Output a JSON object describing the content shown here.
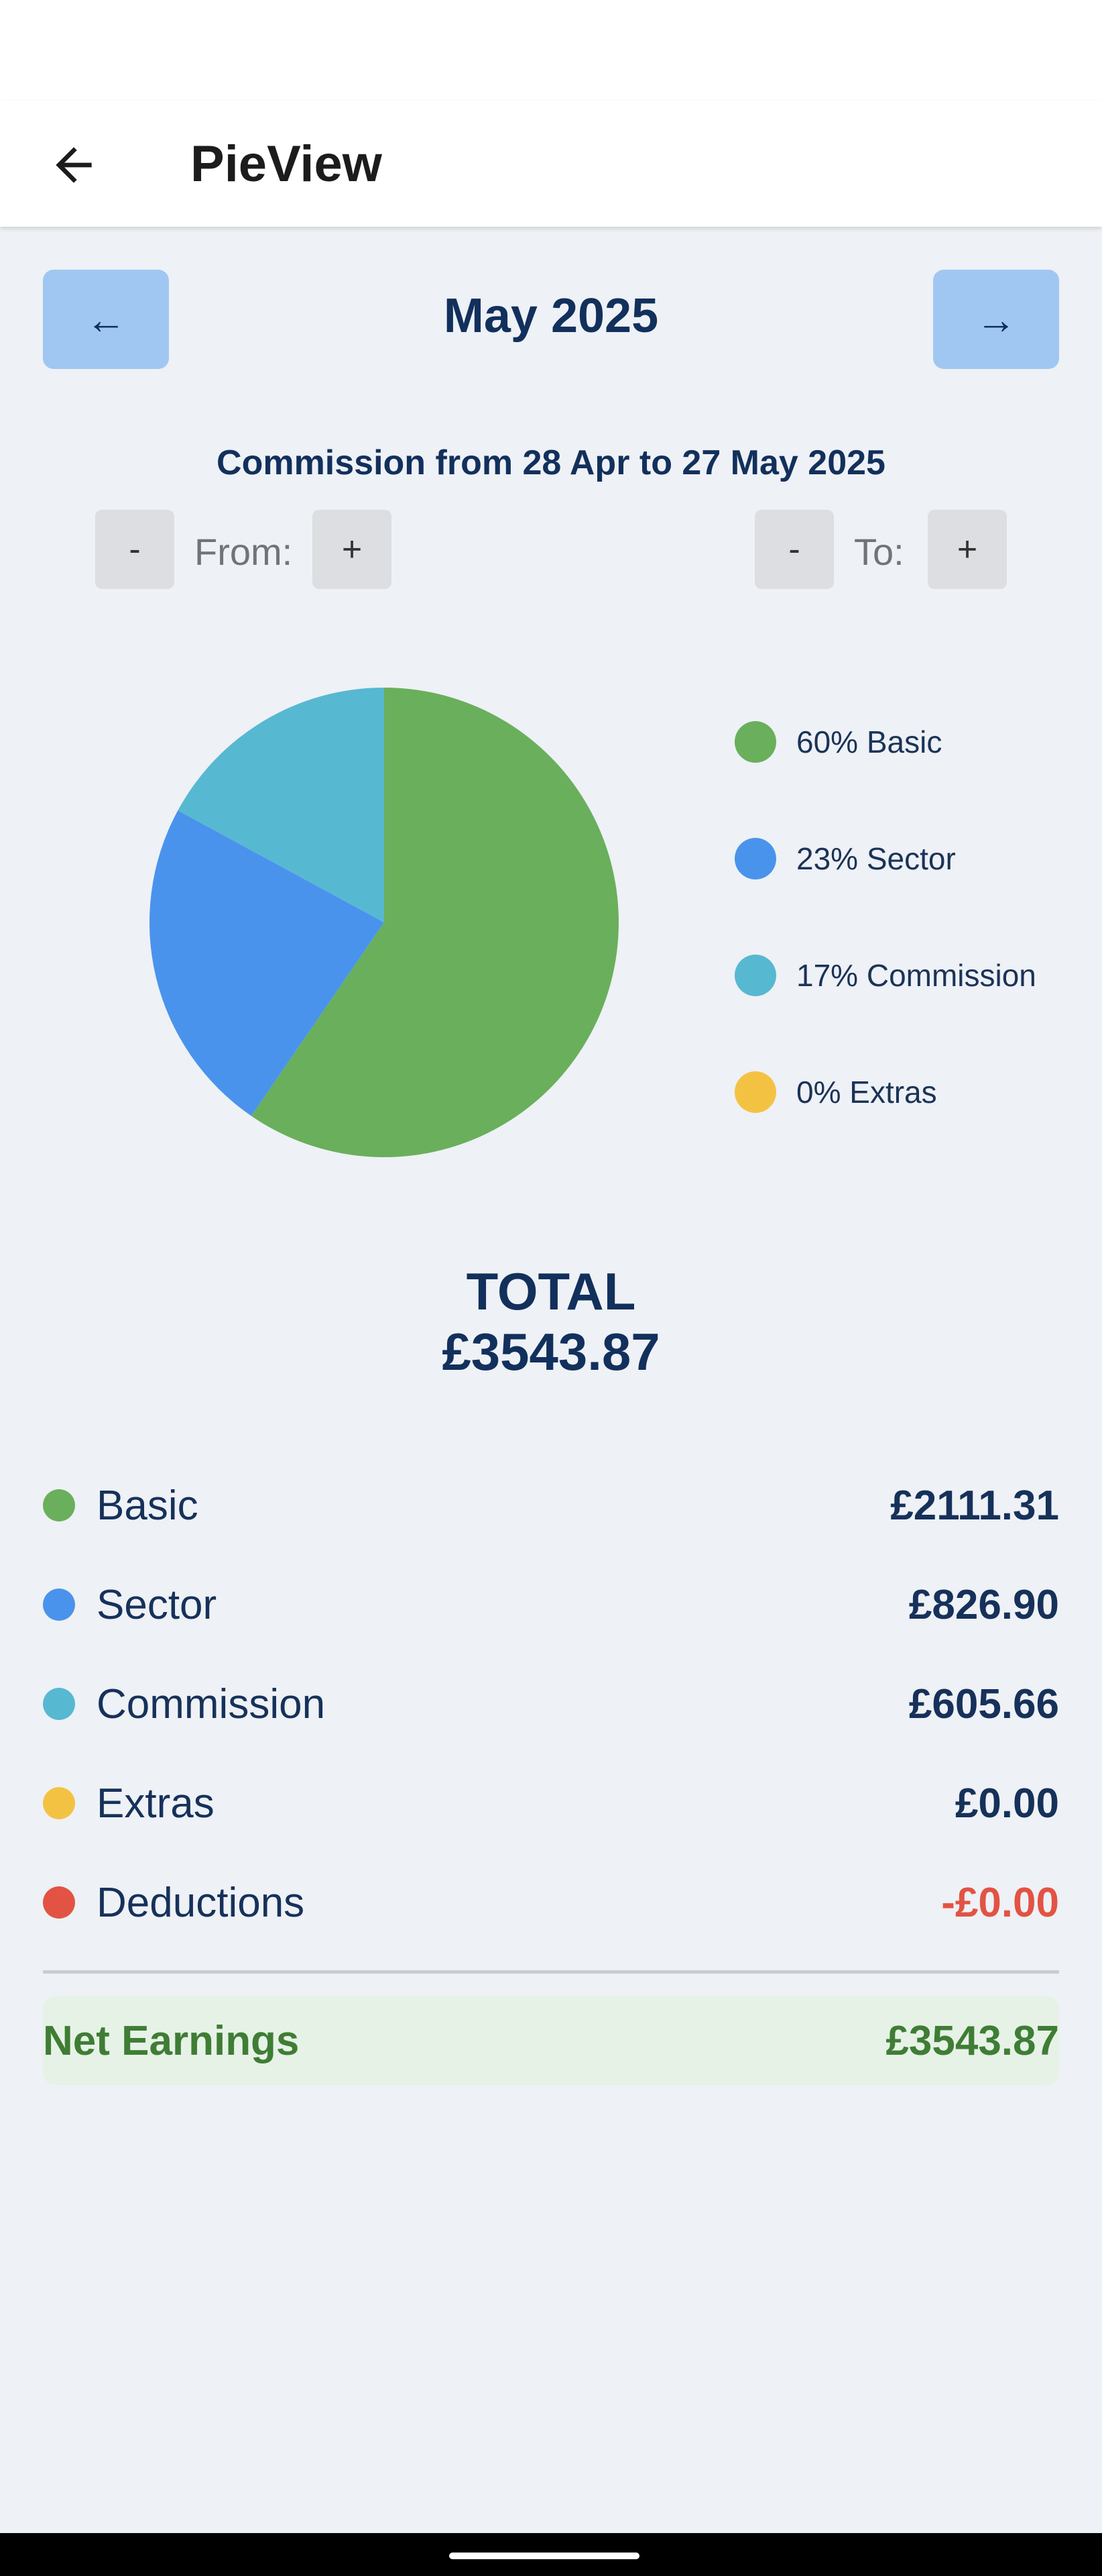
{
  "app": {
    "title": "PieView"
  },
  "month_nav": {
    "prev": "←",
    "label": "May 2025",
    "next": "→"
  },
  "range": {
    "title": "Commission from 28 Apr to 27 May 2025",
    "from_minus": "-",
    "from_label": "From:",
    "from_plus": "+",
    "to_minus": "-",
    "to_label": "To:",
    "to_plus": "+"
  },
  "legend": [
    {
      "text": "60% Basic",
      "color": "#6aaf5c"
    },
    {
      "text": "23% Sector",
      "color": "#4a93ec"
    },
    {
      "text": "17% Commission",
      "color": "#57b8d2"
    },
    {
      "text": "0% Extras",
      "color": "#f4c243"
    }
  ],
  "chart_data": {
    "type": "pie",
    "categories": [
      "Basic",
      "Sector",
      "Commission",
      "Extras"
    ],
    "values": [
      2111.31,
      826.9,
      605.66,
      0.0
    ],
    "colors": [
      "#6aaf5c",
      "#4a93ec",
      "#57b8d2",
      "#f4c243"
    ],
    "legend_position": "right"
  },
  "total": {
    "label": "TOTAL",
    "value": "£3543.87"
  },
  "breakdown": [
    {
      "label": "Basic",
      "value": "£2111.31",
      "color": "#6aaf5c"
    },
    {
      "label": "Sector",
      "value": "£826.90",
      "color": "#4a93ec"
    },
    {
      "label": "Commission",
      "value": "£605.66",
      "color": "#57b8d2"
    },
    {
      "label": "Extras",
      "value": "£0.00",
      "color": "#f4c243"
    },
    {
      "label": "Deductions",
      "value": "-£0.00",
      "color": "#e25343",
      "value_color": "#e25343"
    }
  ],
  "net": {
    "label": "Net Earnings",
    "value": "£3543.87"
  }
}
